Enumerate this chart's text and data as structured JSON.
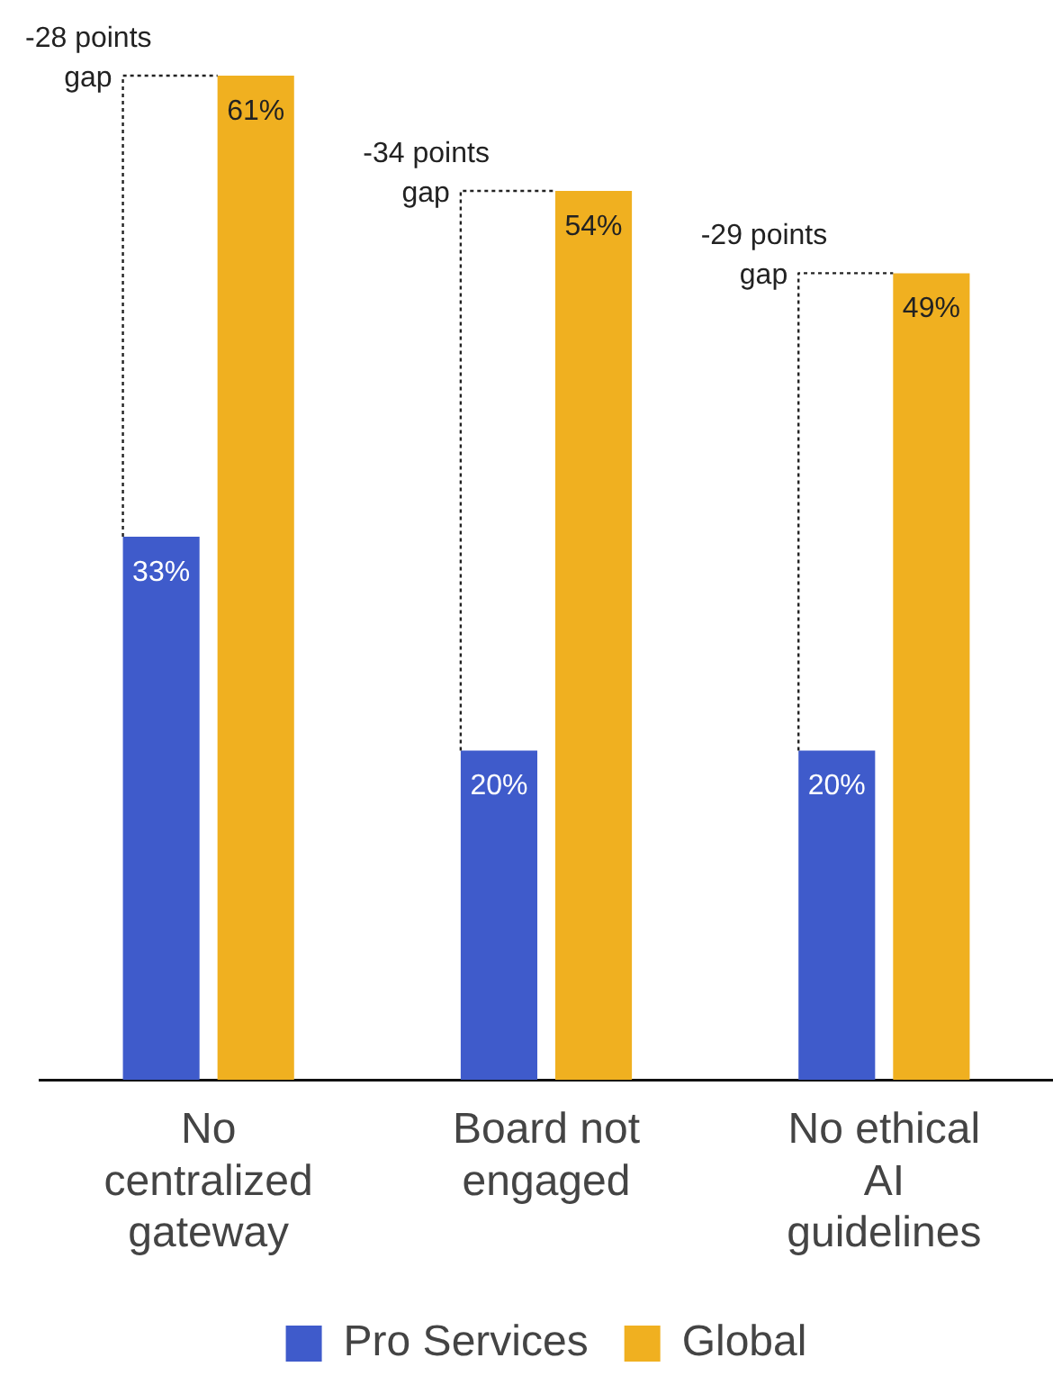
{
  "chart_data": {
    "type": "bar",
    "categories": [
      "No centralized gateway",
      "Board not engaged",
      "No ethical AI guidelines"
    ],
    "series": [
      {
        "name": "Pro Services",
        "color": "#3f5bcb",
        "values": [
          33,
          20,
          20
        ],
        "value_labels": [
          "33%",
          "20%",
          "20%"
        ]
      },
      {
        "name": "Global",
        "color": "#f0b020",
        "values": [
          61,
          54,
          49
        ],
        "value_labels": [
          "61%",
          "54%",
          "49%"
        ]
      }
    ],
    "legend": "bottom",
    "grid": false,
    "annotations": [
      "-28 points gap",
      "-34 points gap",
      "-29 points gap"
    ]
  }
}
